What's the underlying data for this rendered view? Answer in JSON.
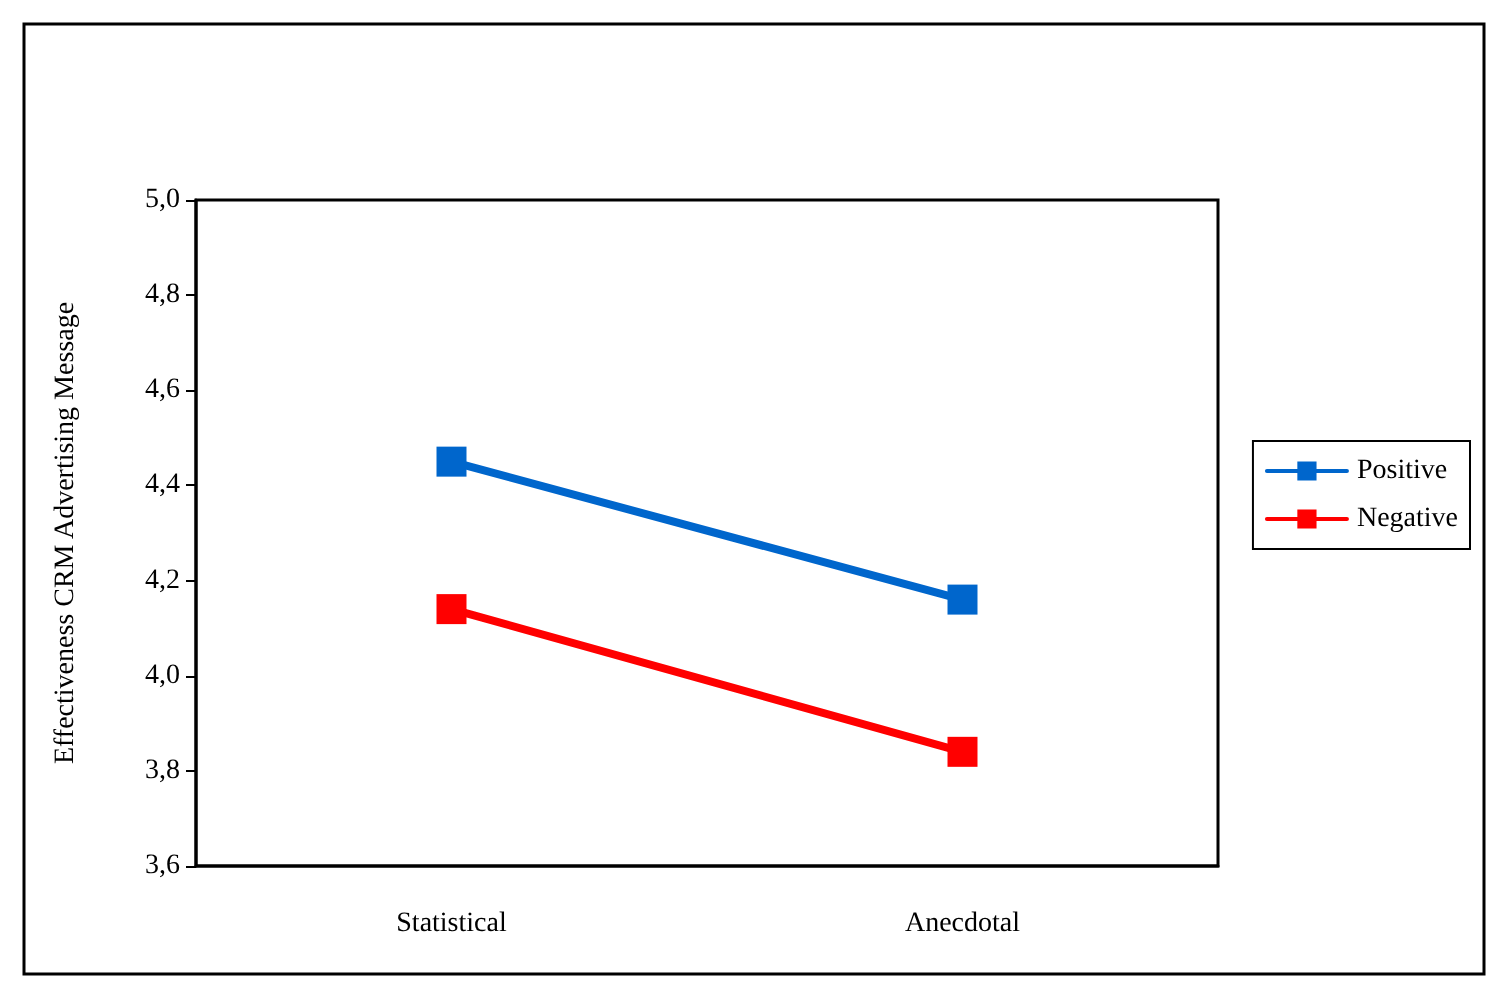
{
  "chart_data": {
    "type": "line",
    "ylabel": "Effectiveness CRM Advertising Message",
    "categories": [
      "Statistical",
      "Anecdotal"
    ],
    "series": [
      {
        "name": "Positive",
        "color": "#0066cc",
        "values": [
          4.45,
          4.16
        ]
      },
      {
        "name": "Negative",
        "color": "#ff0000",
        "values": [
          4.14,
          3.84
        ]
      }
    ],
    "ylim": [
      3.6,
      5.0
    ],
    "yticks": [
      {
        "value": 3.6,
        "label": "3,6"
      },
      {
        "value": 3.8,
        "label": "3,8"
      },
      {
        "value": 4.0,
        "label": "4,0"
      },
      {
        "value": 4.2,
        "label": "4,2"
      },
      {
        "value": 4.4,
        "label": "4,4"
      },
      {
        "value": 4.6,
        "label": "4,6"
      },
      {
        "value": 4.8,
        "label": "4,8"
      },
      {
        "value": 5.0,
        "label": "5,0"
      }
    ],
    "grid": false,
    "legend": "right",
    "marker": "square",
    "line_style": "solid"
  }
}
